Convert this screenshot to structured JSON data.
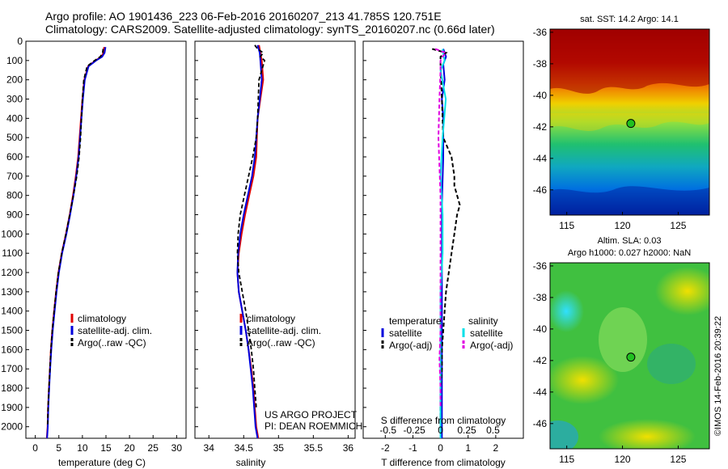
{
  "header": {
    "line1": "Argo profile: AO 1901436_223 06-Feb-2016 20160207_213 41.785S 120.751E",
    "line2": "Climatology: CARS2009. Satellite-adjusted climatology: synTS_20160207.nc (0.66d later)"
  },
  "colors": {
    "climatology": "#e00000",
    "satellite": "#0000dd",
    "argo": "#000000",
    "sal_satellite": "#00e0e8",
    "sal_argo": "#e000e0"
  },
  "chart_data": [
    {
      "type": "line",
      "id": "temperature",
      "xlabel": "temperature (deg C)",
      "xticks": [
        "0",
        "5",
        "10",
        "15",
        "20",
        "25",
        "30"
      ],
      "xlim": [
        -2,
        32
      ],
      "ylim": [
        2060,
        0
      ],
      "yticks": [
        "0",
        "100",
        "200",
        "300",
        "400",
        "500",
        "600",
        "700",
        "800",
        "900",
        "1000",
        "1100",
        "1200",
        "1300",
        "1400",
        "1500",
        "1600",
        "1700",
        "1800",
        "1900",
        "2000"
      ],
      "legend": [
        "climatology",
        "satellite-adj. clim.",
        "Argo(..raw -QC)"
      ],
      "series": [
        {
          "name": "climatology",
          "x": [
            14.6,
            14.5,
            14.0,
            12.8,
            11.2,
            10.4,
            10.0,
            9.7,
            9.4,
            9.1,
            8.6,
            8.0,
            7.3,
            6.5,
            5.6,
            4.9,
            4.4,
            4.0,
            3.6,
            3.3,
            3.1,
            2.9,
            2.7,
            2.6,
            2.5,
            2.45
          ],
          "y": [
            30,
            60,
            80,
            100,
            130,
            200,
            300,
            400,
            500,
            600,
            700,
            800,
            900,
            1000,
            1100,
            1200,
            1300,
            1400,
            1500,
            1600,
            1700,
            1800,
            1900,
            2000,
            2040,
            2060
          ]
        },
        {
          "name": "satellite-adj. clim.",
          "x": [
            14.9,
            14.7,
            14.2,
            12.9,
            11.3,
            10.5,
            10.1,
            9.8,
            9.5,
            9.2,
            8.7,
            8.1,
            7.4,
            6.6,
            5.7,
            5.0,
            4.5,
            4.1,
            3.7,
            3.4,
            3.15,
            2.95,
            2.75,
            2.65,
            2.55,
            2.5
          ],
          "y": [
            30,
            60,
            80,
            100,
            130,
            200,
            300,
            400,
            500,
            600,
            700,
            800,
            900,
            1000,
            1100,
            1200,
            1300,
            1400,
            1500,
            1600,
            1700,
            1800,
            1900,
            2000,
            2040,
            2060
          ]
        },
        {
          "name": "Argo(..raw -QC)",
          "x": [
            14.4,
            14.3,
            13.8,
            12.6,
            11.0,
            10.3,
            10.0,
            9.8,
            9.6,
            9.3,
            8.8,
            8.1,
            7.3,
            6.5,
            5.6,
            4.9,
            4.4,
            4.0,
            3.6,
            3.3,
            3.1,
            2.9,
            2.7,
            2.6
          ],
          "y": [
            40,
            60,
            80,
            100,
            130,
            200,
            300,
            400,
            500,
            600,
            700,
            800,
            900,
            1000,
            1100,
            1200,
            1300,
            1400,
            1500,
            1600,
            1700,
            1800,
            1900,
            2000
          ]
        }
      ]
    },
    {
      "type": "line",
      "id": "salinity",
      "xlabel": "salinity",
      "xticks": [
        "34",
        "34.5",
        "35",
        "35.5",
        "36"
      ],
      "xlim": [
        33.8,
        36.1
      ],
      "ylim": [
        2060,
        0
      ],
      "legend": [
        "climatology",
        "satellite-adj. clim.",
        "Argo(..raw -QC)"
      ],
      "note": [
        "US ARGO PROJECT",
        "PI: DEAN ROEMMICH"
      ],
      "series": [
        {
          "name": "climatology",
          "x": [
            34.72,
            34.74,
            34.76,
            34.78,
            34.74,
            34.7,
            34.69,
            34.68,
            34.64,
            34.58,
            34.52,
            34.47,
            34.43,
            34.41,
            34.43,
            34.48,
            34.53,
            34.57,
            34.61,
            34.64,
            34.66,
            34.68,
            34.7,
            34.71
          ],
          "y": [
            20,
            60,
            100,
            200,
            300,
            400,
            500,
            600,
            700,
            800,
            900,
            1000,
            1100,
            1200,
            1300,
            1400,
            1500,
            1600,
            1700,
            1800,
            1900,
            2000,
            2040,
            2060
          ]
        },
        {
          "name": "satellite-adj. clim.",
          "x": [
            34.7,
            34.73,
            34.74,
            34.76,
            34.73,
            34.7,
            34.68,
            34.66,
            34.62,
            34.56,
            34.5,
            34.45,
            34.42,
            34.41,
            34.43,
            34.48,
            34.53,
            34.57,
            34.6,
            34.63,
            34.65,
            34.67,
            34.69,
            34.7
          ],
          "y": [
            20,
            60,
            100,
            200,
            300,
            400,
            500,
            600,
            700,
            800,
            900,
            1000,
            1100,
            1200,
            1300,
            1400,
            1500,
            1600,
            1700,
            1800,
            1900,
            2000,
            2040,
            2060
          ]
        },
        {
          "name": "Argo(..raw -QC)",
          "x": [
            34.66,
            34.7,
            34.78,
            34.74,
            34.8,
            34.72,
            34.71,
            34.7,
            34.68,
            34.63,
            34.57,
            34.51,
            34.45,
            34.42,
            34.41,
            34.43,
            34.48,
            34.53,
            34.57,
            34.61,
            34.64,
            34.66,
            34.68
          ],
          "y": [
            20,
            40,
            60,
            80,
            100,
            200,
            300,
            400,
            500,
            600,
            700,
            800,
            900,
            1000,
            1100,
            1200,
            1300,
            1400,
            1500,
            1600,
            1700,
            1800,
            1900
          ]
        }
      ]
    },
    {
      "type": "line",
      "id": "difference",
      "xlabel": "T difference from climatology",
      "xlabel_top": "S difference from climatology",
      "xticks": [
        "-2",
        "-1",
        "0",
        "1",
        "2"
      ],
      "xticks_top": [
        "-0.5",
        "-0.25",
        "0",
        "0.25",
        "0.5"
      ],
      "xlim": [
        -2.8,
        3.0
      ],
      "ylim": [
        2060,
        0
      ],
      "legend_titles": [
        "temperature",
        "salinity"
      ],
      "legend": [
        "satellite",
        "Argo(-adj)",
        "satellite",
        "Argo(-adj)"
      ],
      "series": [
        {
          "name": "temperature satellite",
          "x": [
            0.1,
            0.2,
            0.1,
            0.15,
            0.05,
            0.1,
            0.1,
            0.1,
            0.08,
            0.06,
            0.05,
            0.05,
            0.05,
            0.05,
            0.05,
            0.05,
            0.05,
            0.05,
            0.05,
            0.05,
            0.05,
            0.05
          ],
          "y": [
            40,
            80,
            120,
            200,
            300,
            400,
            500,
            600,
            700,
            800,
            900,
            1000,
            1100,
            1200,
            1300,
            1400,
            1500,
            1600,
            1700,
            1800,
            1900,
            2060
          ]
        },
        {
          "name": "temperature Argo(-adj)",
          "x": [
            -0.3,
            0.2,
            0.0,
            0.0,
            0.05,
            0.1,
            0.4,
            0.5,
            0.5,
            0.6,
            0.7,
            0.6,
            0.5,
            0.4,
            0.3,
            0.2,
            0.15,
            0.1,
            0.05,
            0.05,
            0.0,
            0.0
          ],
          "y": [
            40,
            60,
            80,
            120,
            300,
            500,
            600,
            700,
            750,
            800,
            850,
            900,
            1000,
            1100,
            1200,
            1300,
            1400,
            1500,
            1600,
            1700,
            1800,
            2000
          ]
        },
        {
          "name": "salinity satellite",
          "x": [
            0.02,
            0.03,
            0.04,
            0.0,
            0.05,
            0.02,
            0.01,
            0.0,
            0.01,
            0.02,
            0.02,
            0.02,
            0.01,
            0.0,
            0.0,
            0.0,
            0.0,
            0.0,
            0.0,
            0.0
          ],
          "y": [
            40,
            80,
            100,
            150,
            300,
            500,
            600,
            700,
            800,
            900,
            1000,
            1100,
            1200,
            1300,
            1400,
            1500,
            1600,
            1800,
            2000,
            2060
          ]
        },
        {
          "name": "salinity Argo(-adj)",
          "x": [
            -0.05,
            0.05,
            0.02,
            0.0,
            0.0,
            -0.01,
            -0.02,
            0.0,
            0.0,
            0.0,
            0.0,
            -0.01,
            0.0,
            0.0
          ],
          "y": [
            40,
            60,
            80,
            100,
            150,
            300,
            500,
            800,
            1000,
            1100,
            1500,
            1650,
            1800,
            1900
          ]
        }
      ]
    },
    {
      "type": "heatmap",
      "id": "sst-map",
      "title": "sat. SST: 14.2  Argo: 14.1",
      "xticks": [
        "115",
        "120",
        "125"
      ],
      "yticks": [
        "-36",
        "-38",
        "-40",
        "-42",
        "-44",
        "-46"
      ],
      "xlim": [
        113.5,
        127.8
      ],
      "ylim": [
        -47.6,
        -35.8
      ],
      "marker": {
        "lon": 120.751,
        "lat": -41.785
      }
    },
    {
      "type": "heatmap",
      "id": "sla-map",
      "title_line1": "Altim. SLA: 0.03",
      "title_line2": "Argo h1000: 0.027  h2000: NaN",
      "xticks": [
        "115",
        "120",
        "125"
      ],
      "yticks": [
        "-36",
        "-38",
        "-40",
        "-42",
        "-44",
        "-46"
      ],
      "xlim": [
        113.5,
        127.8
      ],
      "ylim": [
        -47.6,
        -35.8
      ],
      "marker": {
        "lon": 120.751,
        "lat": -41.785
      }
    }
  ],
  "credit": "©IMOS 14-Feb-2016 20:39:22"
}
